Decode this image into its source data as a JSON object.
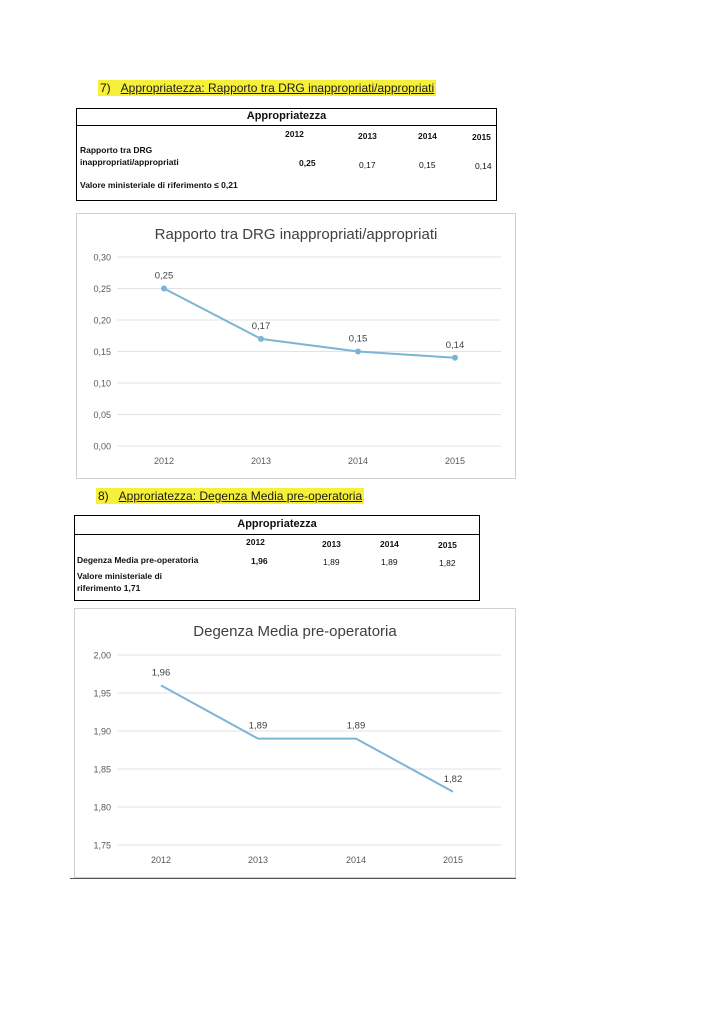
{
  "section7": {
    "number": "7)",
    "title": "Appropriatezza: Rapporto tra DRG inappropriati/appropriati",
    "table": {
      "title": "Appropriatezza",
      "years": [
        "2012",
        "2013",
        "2014",
        "2015"
      ],
      "row_label_line1": "Rapporto tra DRG",
      "row_label_line2": "inappropriati/appropriati",
      "values": [
        "0,25",
        "0,17",
        "0,15",
        "0,14"
      ],
      "reference": "Valore ministeriale di riferimento ≤ 0,21"
    }
  },
  "section8": {
    "number": "8)",
    "title": "Approriatezza: Degenza Media pre-operatoria",
    "table": {
      "title": "Appropriatezza",
      "years": [
        "2012",
        "2013",
        "2014",
        "2015"
      ],
      "row_label": "Degenza Media pre-operatoria",
      "values": [
        "1,96",
        "1,89",
        "1,89",
        "1,82"
      ],
      "reference_line1": "Valore ministeriale di",
      "reference_line2": "riferimento 1,71"
    }
  },
  "chart_data": [
    {
      "type": "line",
      "title": "Rapporto tra DRG inappropriati/appropriati",
      "categories": [
        "2012",
        "2013",
        "2014",
        "2015"
      ],
      "values": [
        0.25,
        0.17,
        0.15,
        0.14
      ],
      "labels": [
        "0,25",
        "0,17",
        "0,15",
        "0,14"
      ],
      "ylim": [
        0,
        0.3
      ],
      "yticks": [
        "0,00",
        "0,05",
        "0,10",
        "0,15",
        "0,20",
        "0,25",
        "0,30"
      ],
      "markers": true,
      "grid": true,
      "color": "#7db4d6"
    },
    {
      "type": "line",
      "title": "Degenza Media pre-operatoria",
      "categories": [
        "2012",
        "2013",
        "2014",
        "2015"
      ],
      "values": [
        1.96,
        1.89,
        1.89,
        1.82
      ],
      "labels": [
        "1,96",
        "1,89",
        "1,89",
        "1,82"
      ],
      "ylim": [
        1.75,
        2.0
      ],
      "yticks": [
        "1,75",
        "1,80",
        "1,85",
        "1,90",
        "1,95",
        "2,00"
      ],
      "markers": false,
      "grid": true,
      "color": "#7db4d6"
    }
  ]
}
